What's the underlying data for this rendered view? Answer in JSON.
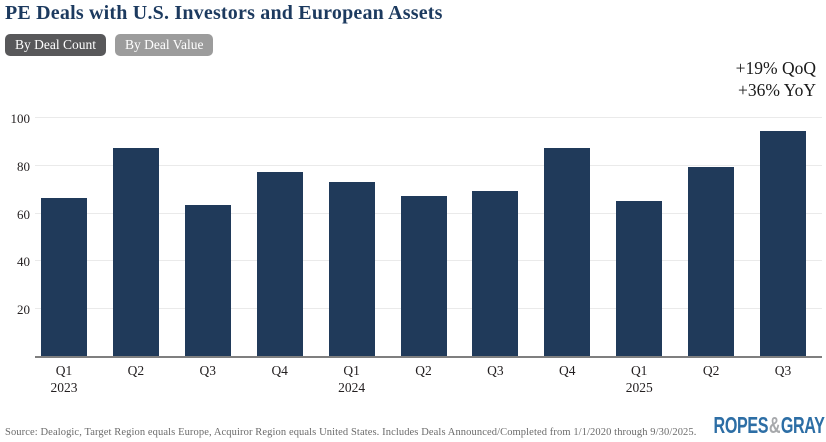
{
  "header": {
    "title": "PE Deals with U.S. Investors and European Assets",
    "toggles": [
      {
        "label": "By Deal Count",
        "selected": true
      },
      {
        "label": "By Deal Value",
        "selected": false
      }
    ]
  },
  "annotation": {
    "line1": "+19% QoQ",
    "line2": "+36% YoY"
  },
  "chart_data": {
    "type": "bar",
    "title": "PE Deals with U.S. Investors and European Assets",
    "categories": [
      "Q1 2023",
      "Q2 2023",
      "Q3 2023",
      "Q4 2023",
      "Q1 2024",
      "Q2 2024",
      "Q3 2024",
      "Q4 2024",
      "Q1 2025",
      "Q2 2025",
      "Q3 2025"
    ],
    "values": [
      66,
      87,
      63,
      77,
      73,
      67,
      69,
      87,
      65,
      79,
      94
    ],
    "x_tick_labels": [
      {
        "q": "Q1",
        "year": "2023"
      },
      {
        "q": "Q2",
        "year": ""
      },
      {
        "q": "Q3",
        "year": ""
      },
      {
        "q": "Q4",
        "year": ""
      },
      {
        "q": "Q1",
        "year": "2024"
      },
      {
        "q": "Q2",
        "year": ""
      },
      {
        "q": "Q3",
        "year": ""
      },
      {
        "q": "Q4",
        "year": ""
      },
      {
        "q": "Q1",
        "year": "2025"
      },
      {
        "q": "Q2",
        "year": ""
      },
      {
        "q": "Q3",
        "year": ""
      }
    ],
    "xlabel": "",
    "ylabel": "",
    "ylim": [
      0,
      100
    ],
    "yticks": [
      20,
      40,
      60,
      80,
      100
    ],
    "grid": true,
    "legend": "none",
    "bar_color": "#203a5a"
  },
  "footer": {
    "source": "Source: Dealogic, Target Region equals Europe, Acquiror Region equals United States. Includes Deals Announced/Completed from 1/1/2020 through 9/30/2025.",
    "logo": {
      "part1": "ROPES",
      "amp": "&",
      "part2": "GRAY"
    }
  },
  "colors": {
    "title": "#1c3a5f",
    "bar": "#203a5a",
    "toggle_selected_bg": "#58585a",
    "toggle_unselected_bg": "#9c9c9c",
    "gridline": "#eaeaea",
    "baseline": "#7f7f7f",
    "axis_text": "#231f20",
    "source_text": "#6b6b6b",
    "logo_blue": "#2d6ea5",
    "logo_gray": "#a7a9ac"
  }
}
